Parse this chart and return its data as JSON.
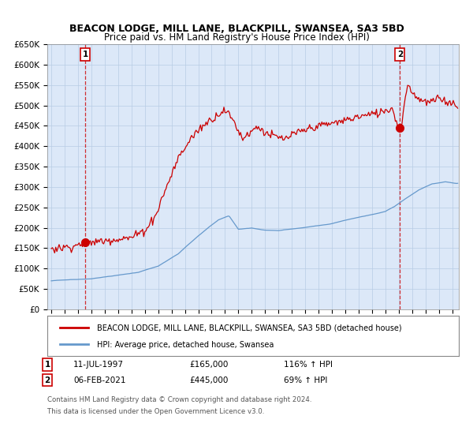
{
  "title": "BEACON LODGE, MILL LANE, BLACKPILL, SWANSEA, SA3 5BD",
  "subtitle": "Price paid vs. HM Land Registry's House Price Index (HPI)",
  "ylim": [
    0,
    650000
  ],
  "yticks": [
    0,
    50000,
    100000,
    150000,
    200000,
    250000,
    300000,
    350000,
    400000,
    450000,
    500000,
    550000,
    600000,
    650000
  ],
  "xlim_start": 1994.7,
  "xlim_end": 2025.5,
  "sale1_x": 1997.53,
  "sale1_y": 165000,
  "sale2_x": 2021.09,
  "sale2_y": 445000,
  "sale1_label": "11-JUL-1997",
  "sale1_price": "£165,000",
  "sale1_hpi": "116% ↑ HPI",
  "sale2_label": "06-FEB-2021",
  "sale2_price": "£445,000",
  "sale2_hpi": "69% ↑ HPI",
  "legend_line1": "BEACON LODGE, MILL LANE, BLACKPILL, SWANSEA, SA3 5BD (detached house)",
  "legend_line2": "HPI: Average price, detached house, Swansea",
  "footer1": "Contains HM Land Registry data © Crown copyright and database right 2024.",
  "footer2": "This data is licensed under the Open Government Licence v3.0.",
  "red_color": "#cc0000",
  "blue_color": "#6699cc",
  "bg_color": "#dce8f8",
  "grid_color": "#b8cce4",
  "title_fontsize": 9,
  "subtitle_fontsize": 8.5
}
